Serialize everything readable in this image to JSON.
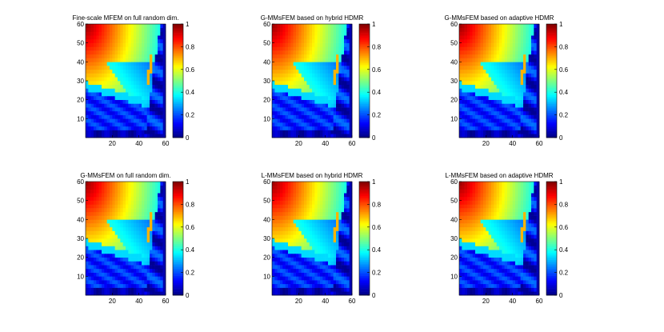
{
  "chart_data": [
    {
      "type": "heatmap",
      "title": "Fine-scale MFEM on full random dim.",
      "xlim": [
        0,
        60
      ],
      "ylim": [
        0,
        60
      ],
      "xticks": [
        20,
        40,
        60
      ],
      "yticks": [
        10,
        20,
        30,
        40,
        50,
        60
      ],
      "colorbar": {
        "range": [
          0,
          1
        ],
        "ticks": [
          "0",
          "0.2",
          "0.4",
          "0.6",
          "0.8",
          "1"
        ],
        "colormap": "jet"
      },
      "grid": false,
      "legend": "none"
    },
    {
      "type": "heatmap",
      "title": "G-MMsFEM based on hybrid HDMR",
      "xlim": [
        0,
        60
      ],
      "ylim": [
        0,
        60
      ],
      "xticks": [
        20,
        40,
        60
      ],
      "yticks": [
        10,
        20,
        30,
        40,
        50,
        60
      ],
      "colorbar": {
        "range": [
          0,
          1
        ],
        "ticks": [
          "0",
          "0.2",
          "0.4",
          "0.6",
          "0.8",
          "1"
        ],
        "colormap": "jet"
      },
      "grid": false,
      "legend": "none"
    },
    {
      "type": "heatmap",
      "title": "G-MMsFEM based on adaptive HDMR",
      "xlim": [
        0,
        60
      ],
      "ylim": [
        0,
        60
      ],
      "xticks": [
        20,
        40,
        60
      ],
      "yticks": [
        10,
        20,
        30,
        40,
        50,
        60
      ],
      "colorbar": {
        "range": [
          0,
          1
        ],
        "ticks": [
          "0",
          "0.2",
          "0.4",
          "0.6",
          "0.8",
          "1"
        ],
        "colormap": "jet"
      },
      "grid": false,
      "legend": "none"
    },
    {
      "type": "heatmap",
      "title": "G-MMsFEM  on full random dim.",
      "xlim": [
        0,
        60
      ],
      "ylim": [
        0,
        60
      ],
      "xticks": [
        20,
        40,
        60
      ],
      "yticks": [
        10,
        20,
        30,
        40,
        50,
        60
      ],
      "colorbar": {
        "range": [
          0,
          1
        ],
        "ticks": [
          "0",
          "0.2",
          "0.4",
          "0.6",
          "0.8",
          "1"
        ],
        "colormap": "jet"
      },
      "grid": false,
      "legend": "none"
    },
    {
      "type": "heatmap",
      "title": "L-MMsFEM based on hybrid HDMR",
      "xlim": [
        0,
        60
      ],
      "ylim": [
        0,
        60
      ],
      "xticks": [
        20,
        40,
        60
      ],
      "yticks": [
        10,
        20,
        30,
        40,
        50,
        60
      ],
      "colorbar": {
        "range": [
          0,
          1
        ],
        "ticks": [
          "0",
          "0.2",
          "0.4",
          "0.6",
          "0.8",
          "1"
        ],
        "colormap": "jet"
      },
      "grid": false,
      "legend": "none"
    },
    {
      "type": "heatmap",
      "title": "L-MMsFEM based on adaptive HDMR",
      "xlim": [
        0,
        60
      ],
      "ylim": [
        0,
        60
      ],
      "xticks": [
        20,
        40,
        60
      ],
      "yticks": [
        10,
        20,
        30,
        40,
        50,
        60
      ],
      "colorbar": {
        "range": [
          0,
          1
        ],
        "ticks": [
          "0",
          "0.2",
          "0.4",
          "0.6",
          "0.8",
          "1"
        ],
        "colormap": "jet"
      },
      "grid": false,
      "legend": "none"
    }
  ]
}
